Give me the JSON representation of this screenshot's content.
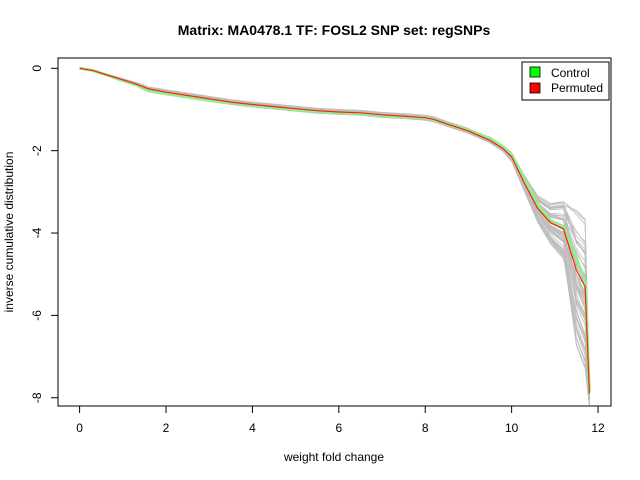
{
  "chart_data": {
    "type": "line",
    "title": "Matrix: MA0478.1 TF: FOSL2 SNP set: regSNPs",
    "xlabel": "weight fold change",
    "ylabel": "inverse cumulative distribution",
    "xlim": [
      -0.5,
      12.3
    ],
    "ylim": [
      -8.2,
      0.25
    ],
    "x_ticks": [
      0,
      2,
      4,
      6,
      8,
      10,
      12
    ],
    "x_tick_labels": [
      "0",
      "2",
      "4",
      "6",
      "8",
      "10",
      "12"
    ],
    "y_ticks": [
      0,
      -2,
      -4,
      -6,
      -8
    ],
    "y_tick_labels": [
      "0",
      "-2",
      "-4",
      "-6",
      "-8"
    ],
    "grid": false,
    "legend_position": "top-right",
    "legend": [
      {
        "label": "Control",
        "color": "#00ff00"
      },
      {
        "label": "Permuted",
        "color": "#ff0000"
      }
    ],
    "colors": {
      "permuted_background_lines": "#bebebe",
      "control_line": "#90ee90",
      "permuted_line": "#ff2000"
    },
    "series": [
      {
        "name": "Control",
        "color": "#90ee90",
        "x": [
          0,
          0.3,
          0.6,
          1.0,
          1.3,
          1.6,
          2.0,
          2.5,
          3.0,
          3.5,
          4.0,
          4.5,
          5.0,
          5.5,
          6.0,
          6.5,
          7.0,
          7.5,
          8.0,
          8.2,
          8.5,
          9.0,
          9.5,
          9.8,
          10.0,
          10.3,
          10.6,
          10.9,
          11.2,
          11.5,
          11.7,
          11.8
        ],
        "y": [
          0,
          -0.05,
          -0.15,
          -0.3,
          -0.4,
          -0.55,
          -0.62,
          -0.7,
          -0.78,
          -0.85,
          -0.9,
          -0.95,
          -1.0,
          -1.05,
          -1.08,
          -1.1,
          -1.15,
          -1.18,
          -1.2,
          -1.25,
          -1.35,
          -1.5,
          -1.7,
          -1.9,
          -2.1,
          -2.7,
          -3.3,
          -3.7,
          -3.85,
          -4.6,
          -5.2,
          -7.85
        ]
      },
      {
        "name": "Permuted",
        "color": "#ff2000",
        "x": [
          0,
          0.3,
          0.6,
          1.0,
          1.3,
          1.6,
          2.0,
          2.5,
          3.0,
          3.5,
          4.0,
          4.5,
          5.0,
          5.5,
          6.0,
          6.5,
          7.0,
          7.5,
          8.0,
          8.2,
          8.5,
          9.0,
          9.5,
          9.8,
          10.0,
          10.3,
          10.6,
          10.9,
          11.2,
          11.5,
          11.7,
          11.8
        ],
        "y": [
          0,
          -0.05,
          -0.15,
          -0.28,
          -0.38,
          -0.5,
          -0.58,
          -0.66,
          -0.74,
          -0.82,
          -0.88,
          -0.93,
          -0.98,
          -1.03,
          -1.06,
          -1.08,
          -1.13,
          -1.16,
          -1.2,
          -1.24,
          -1.35,
          -1.52,
          -1.75,
          -1.95,
          -2.15,
          -2.8,
          -3.4,
          -3.75,
          -3.9,
          -4.9,
          -5.3,
          -7.9
        ]
      }
    ]
  }
}
